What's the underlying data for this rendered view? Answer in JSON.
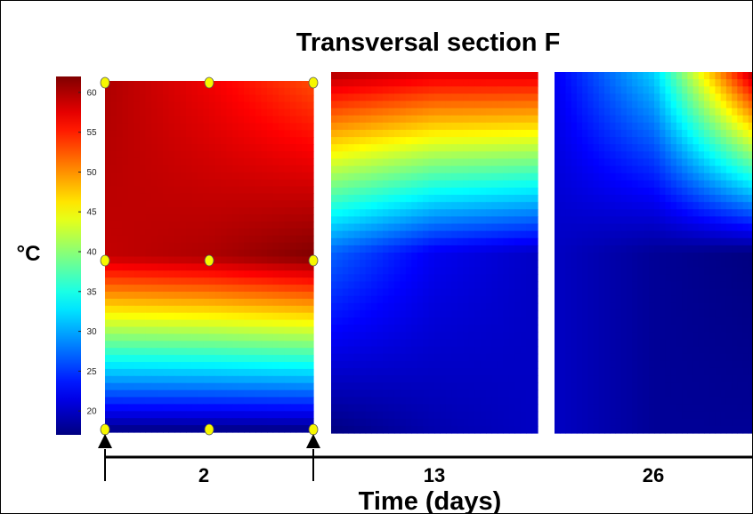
{
  "chart_data": {
    "type": "heatmap",
    "title": "Transversal section F",
    "xlabel": "Time (days)",
    "colorbar_unit": "°C",
    "colorbar_range": [
      17,
      62
    ],
    "colorbar_ticks": [
      20,
      25,
      30,
      35,
      40,
      45,
      50,
      55,
      60
    ],
    "colormap": "jet",
    "time_points_days": [
      2,
      13,
      26
    ],
    "panels": [
      {
        "day": 2,
        "label": "2",
        "grid": [
          [
            60,
            57,
            53
          ],
          [
            59,
            60,
            62
          ],
          [
            17,
            17,
            17
          ]
        ],
        "sensor_markers": "yes"
      },
      {
        "day": 13,
        "label": "13",
        "grid": [
          [
            60,
            58,
            58
          ],
          [
            27,
            22,
            20
          ],
          [
            17,
            19,
            20
          ]
        ]
      },
      {
        "day": 26,
        "label": "26",
        "grid": [
          [
            22,
            32,
            60
          ],
          [
            20,
            18,
            17
          ],
          [
            20,
            18,
            18
          ]
        ]
      }
    ]
  },
  "colors": {
    "sensor_marker": "#f7f700",
    "axis": "#000000"
  }
}
